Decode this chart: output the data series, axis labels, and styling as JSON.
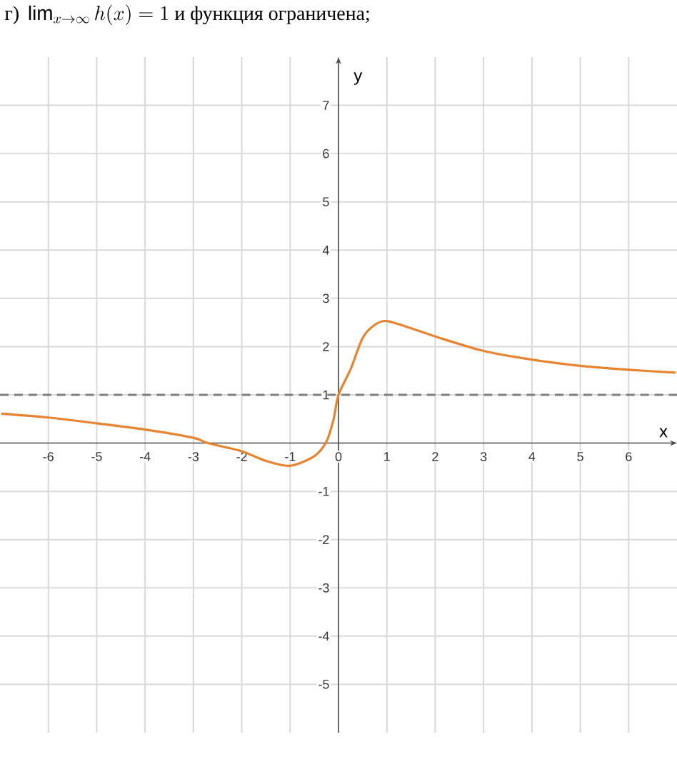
{
  "chart_data": {
    "type": "line",
    "title": "\\text{г) }\\lim_{x\\to\\infty} h(x) = 1\\text{ и функция ограничена;}",
    "xlabel": "x",
    "ylabel": "y",
    "x": [
      -6.97,
      -6,
      -5,
      -4,
      -3,
      -2.7,
      -2,
      -1.5,
      -1,
      -0.5,
      -0.25,
      -0.1,
      0,
      0.25,
      0.5,
      0.75,
      1,
      1.5,
      2,
      3,
      4,
      5,
      6,
      6.97
    ],
    "series": [
      {
        "color": "#e8832f",
        "values": [
          0.61,
          0.53,
          0.41,
          0.28,
          0.11,
          0,
          -0.17,
          -0.37,
          -0.47,
          -0.27,
          0.03,
          0.5,
          1,
          1.53,
          2.18,
          2.45,
          2.53,
          2.38,
          2.21,
          1.91,
          1.73,
          1.6,
          1.52,
          1.46
        ]
      }
    ],
    "xlim": [
      -7,
      7
    ],
    "ylim": [
      -6,
      8
    ],
    "xticks": [
      -6,
      -5,
      -4,
      -3,
      -2,
      -1,
      0,
      1,
      2,
      3,
      4,
      5,
      6
    ],
    "yticks": [
      -5,
      -4,
      -3,
      -2,
      -1,
      1,
      2,
      3,
      4,
      5,
      6,
      7
    ],
    "grid": true,
    "marker": "none",
    "line_style": "solid",
    "ref_lines": [
      {
        "axis": "y",
        "value": 1,
        "color": "#808080",
        "line_style": "dashed"
      }
    ]
  }
}
